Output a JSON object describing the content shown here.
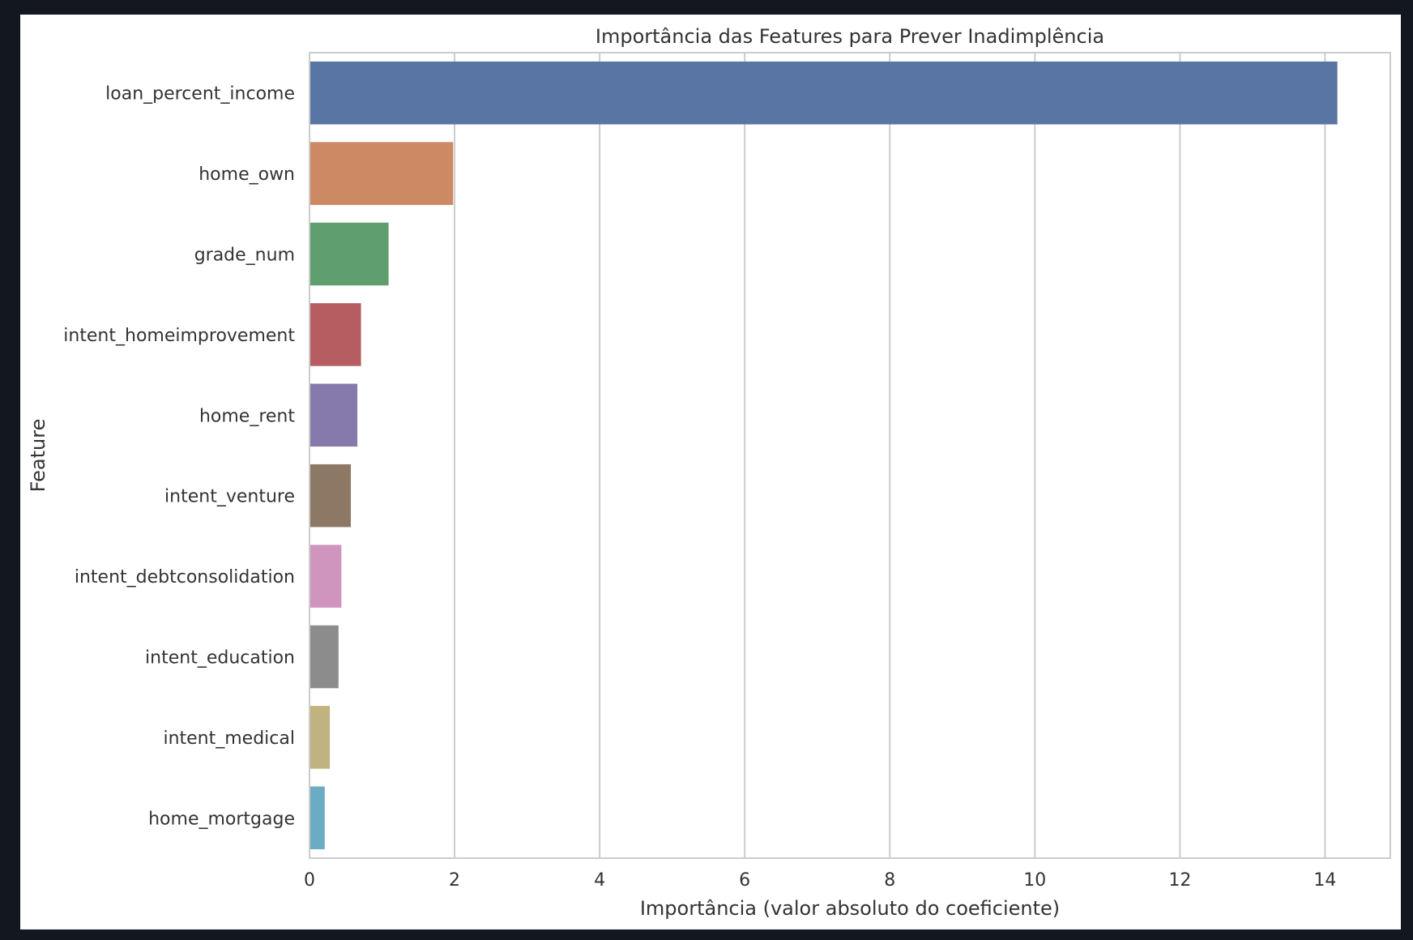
{
  "chart_data": {
    "type": "bar",
    "orientation": "horizontal",
    "title": "Importância das Features para Prever Inadimplência",
    "xlabel": "Importância (valor absoluto do coeficiente)",
    "ylabel": "Feature",
    "xlim": [
      0,
      14.9
    ],
    "xticks": [
      0,
      2,
      4,
      6,
      8,
      10,
      12,
      14
    ],
    "grid": "vertical",
    "categories": [
      "loan_percent_income",
      "home_own",
      "grade_num",
      "intent_homeimprovement",
      "home_rent",
      "intent_venture",
      "intent_debtconsolidation",
      "intent_education",
      "intent_medical",
      "home_mortgage"
    ],
    "values": [
      14.17,
      1.98,
      1.09,
      0.71,
      0.66,
      0.57,
      0.44,
      0.4,
      0.28,
      0.21
    ],
    "colors": [
      "#5875a4",
      "#cc8963",
      "#5f9e6e",
      "#b55d60",
      "#857aab",
      "#8d7866",
      "#d095bf",
      "#8c8c8c",
      "#c1b37f",
      "#6cabc4"
    ]
  }
}
